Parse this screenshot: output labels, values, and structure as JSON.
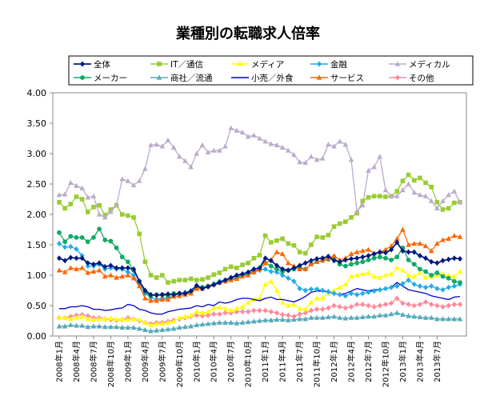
{
  "chart_data": {
    "type": "line",
    "title": "業種別の転職求人倍率",
    "xlabel": "",
    "ylabel": "",
    "ylim": [
      0,
      4
    ],
    "yticks": [
      "0.00",
      "0.50",
      "1.00",
      "1.50",
      "2.00",
      "2.50",
      "3.00",
      "3.50",
      "4.00"
    ],
    "grid": false,
    "legend_position": "top",
    "start": "2008-01",
    "x_tick_labels": [
      "2008年1月",
      "2008年4月",
      "2008年7月",
      "2008年10月",
      "2009年1月",
      "2009年4月",
      "2009年7月",
      "2009年10月",
      "2010年1月",
      "2010年4月",
      "2010年7月",
      "2010年10月",
      "2011年1月",
      "2011年4月",
      "2011年7月",
      "2011年10月",
      "2012年1月",
      "2012年4月",
      "2012年7月",
      "2012年10月",
      "2013年1月",
      "2013年4月",
      "2013年7月"
    ],
    "series": [
      {
        "name": "全体",
        "color": "#001a80",
        "marker": "diamond",
        "values": [
          1.28,
          1.24,
          1.29,
          1.28,
          1.28,
          1.2,
          1.18,
          1.2,
          1.14,
          1.16,
          1.12,
          1.12,
          1.12,
          1.1,
          0.9,
          0.75,
          0.68,
          0.67,
          0.68,
          0.69,
          0.68,
          0.7,
          0.7,
          0.74,
          0.83,
          0.78,
          0.81,
          0.84,
          0.88,
          0.92,
          0.96,
          1.0,
          1.02,
          1.05,
          1.1,
          1.12,
          1.28,
          1.24,
          1.16,
          1.1,
          1.08,
          1.12,
          1.16,
          1.2,
          1.24,
          1.27,
          1.28,
          1.31,
          1.24,
          1.22,
          1.25,
          1.27,
          1.28,
          1.3,
          1.32,
          1.35,
          1.38,
          1.37,
          1.42,
          1.54,
          1.4,
          1.38,
          1.38,
          1.32,
          1.28,
          1.22,
          1.2,
          1.24,
          1.26,
          1.28,
          1.27
        ]
      },
      {
        "name": "IT／通信",
        "color": "#99cc33",
        "marker": "square",
        "values": [
          2.2,
          2.1,
          2.17,
          2.29,
          2.25,
          2.04,
          2.12,
          2.15,
          1.99,
          2.08,
          2.15,
          2.0,
          1.98,
          1.95,
          1.68,
          1.22,
          1.0,
          0.96,
          1.0,
          0.88,
          0.9,
          0.92,
          0.92,
          0.94,
          0.92,
          0.93,
          0.96,
          1.01,
          1.04,
          1.1,
          1.14,
          1.12,
          1.17,
          1.2,
          1.28,
          1.33,
          1.65,
          1.54,
          1.57,
          1.6,
          1.52,
          1.49,
          1.38,
          1.36,
          1.5,
          1.63,
          1.62,
          1.66,
          1.8,
          1.85,
          1.88,
          1.95,
          2.02,
          2.22,
          2.28,
          2.3,
          2.3,
          2.29,
          2.3,
          2.38,
          2.55,
          2.65,
          2.56,
          2.6,
          2.52,
          2.45,
          2.2,
          2.08,
          2.1,
          2.19,
          2.2
        ]
      },
      {
        "name": "メディア",
        "color": "#ffff00",
        "marker": "triangle",
        "values": [
          0.3,
          0.3,
          0.28,
          0.3,
          0.32,
          0.28,
          0.27,
          0.28,
          0.28,
          0.29,
          0.28,
          0.27,
          0.27,
          0.28,
          0.27,
          0.22,
          0.18,
          0.2,
          0.2,
          0.22,
          0.24,
          0.3,
          0.32,
          0.34,
          0.4,
          0.38,
          0.4,
          0.46,
          0.47,
          0.45,
          0.42,
          0.45,
          0.48,
          0.55,
          0.6,
          0.62,
          0.85,
          0.9,
          0.75,
          0.55,
          0.5,
          0.52,
          0.45,
          0.44,
          0.55,
          0.62,
          0.62,
          0.7,
          0.75,
          0.8,
          0.85,
          0.98,
          1.0,
          1.02,
          1.04,
          0.98,
          0.96,
          1.0,
          1.02,
          1.12,
          1.08,
          1.0,
          0.98,
          1.04,
          0.96,
          0.98,
          1.0,
          1.02,
          1.0,
          0.98,
          1.06
        ]
      },
      {
        "name": "金融",
        "color": "#22aaee",
        "marker": "diamond",
        "values": [
          1.52,
          1.46,
          1.47,
          1.43,
          1.32,
          1.15,
          1.15,
          1.18,
          1.1,
          1.12,
          1.1,
          1.1,
          1.05,
          1.0,
          0.85,
          0.7,
          0.63,
          0.6,
          0.62,
          0.62,
          0.66,
          0.7,
          0.72,
          0.74,
          0.82,
          0.8,
          0.82,
          0.86,
          0.9,
          0.92,
          0.96,
          0.98,
          1.0,
          1.02,
          1.05,
          1.08,
          1.1,
          1.06,
          1.05,
          1.0,
          0.95,
          0.9,
          0.78,
          0.75,
          0.77,
          0.77,
          0.75,
          0.73,
          0.7,
          0.68,
          0.66,
          0.7,
          0.68,
          0.7,
          0.72,
          0.74,
          0.76,
          0.78,
          0.8,
          0.82,
          0.86,
          0.92,
          0.85,
          0.82,
          0.8,
          0.82,
          0.78,
          0.76,
          0.8,
          0.82,
          0.85
        ]
      },
      {
        "name": "メディカル",
        "color": "#bbaacc",
        "marker": "triangle",
        "values": [
          2.32,
          2.33,
          2.52,
          2.47,
          2.43,
          2.28,
          2.3,
          2.0,
          1.95,
          2.04,
          2.15,
          2.58,
          2.55,
          2.48,
          2.55,
          2.75,
          3.14,
          3.15,
          3.12,
          3.22,
          3.1,
          2.95,
          2.88,
          2.78,
          3.0,
          3.14,
          3.02,
          3.05,
          3.05,
          3.12,
          3.42,
          3.38,
          3.35,
          3.28,
          3.3,
          3.25,
          3.2,
          3.16,
          3.14,
          3.1,
          3.05,
          2.98,
          2.86,
          2.85,
          2.95,
          2.9,
          2.92,
          3.15,
          3.12,
          3.2,
          3.15,
          2.9,
          2.05,
          2.15,
          2.72,
          2.78,
          2.95,
          2.4,
          2.3,
          2.3,
          2.4,
          2.5,
          2.36,
          2.32,
          2.3,
          2.22,
          2.1,
          2.22,
          2.32,
          2.38,
          2.2
        ]
      },
      {
        "name": "メーカー",
        "color": "#11aa66",
        "marker": "circle",
        "values": [
          1.7,
          1.55,
          1.64,
          1.62,
          1.62,
          1.55,
          1.62,
          1.76,
          1.58,
          1.56,
          1.45,
          1.3,
          1.22,
          1.08,
          0.9,
          0.72,
          0.66,
          0.68,
          0.68,
          0.66,
          0.7,
          0.7,
          0.7,
          0.72,
          0.78,
          0.8,
          0.82,
          0.85,
          0.88,
          0.9,
          0.94,
          0.96,
          1.0,
          1.02,
          1.06,
          1.1,
          1.2,
          1.15,
          1.1,
          1.06,
          1.08,
          1.1,
          1.12,
          1.1,
          1.18,
          1.22,
          1.24,
          1.26,
          1.3,
          1.18,
          1.15,
          1.18,
          1.2,
          1.22,
          1.25,
          1.28,
          1.3,
          1.28,
          1.25,
          1.3,
          1.45,
          1.25,
          1.18,
          1.1,
          1.06,
          1.0,
          1.04,
          0.98,
          0.95,
          0.9,
          0.88
        ]
      },
      {
        "name": "商社／流通",
        "color": "#55aabb",
        "marker": "triangle",
        "values": [
          0.16,
          0.16,
          0.18,
          0.17,
          0.17,
          0.15,
          0.16,
          0.16,
          0.15,
          0.15,
          0.15,
          0.14,
          0.14,
          0.14,
          0.12,
          0.1,
          0.08,
          0.09,
          0.1,
          0.11,
          0.12,
          0.14,
          0.15,
          0.16,
          0.18,
          0.19,
          0.2,
          0.21,
          0.22,
          0.22,
          0.22,
          0.21,
          0.22,
          0.23,
          0.24,
          0.25,
          0.26,
          0.26,
          0.27,
          0.27,
          0.26,
          0.27,
          0.28,
          0.28,
          0.3,
          0.3,
          0.3,
          0.31,
          0.32,
          0.3,
          0.29,
          0.3,
          0.3,
          0.31,
          0.32,
          0.32,
          0.34,
          0.34,
          0.36,
          0.38,
          0.35,
          0.33,
          0.32,
          0.31,
          0.3,
          0.3,
          0.28,
          0.28,
          0.28,
          0.28,
          0.28
        ]
      },
      {
        "name": "小売／外食",
        "color": "#0000cc",
        "marker": "none",
        "values": [
          0.45,
          0.45,
          0.48,
          0.48,
          0.5,
          0.48,
          0.44,
          0.44,
          0.42,
          0.43,
          0.45,
          0.46,
          0.52,
          0.5,
          0.44,
          0.42,
          0.38,
          0.36,
          0.36,
          0.4,
          0.42,
          0.44,
          0.45,
          0.46,
          0.5,
          0.48,
          0.52,
          0.5,
          0.56,
          0.54,
          0.56,
          0.6,
          0.62,
          0.62,
          0.6,
          0.58,
          0.62,
          0.64,
          0.6,
          0.6,
          0.58,
          0.56,
          0.6,
          0.65,
          0.72,
          0.74,
          0.74,
          0.72,
          0.7,
          0.68,
          0.7,
          0.74,
          0.78,
          0.76,
          0.74,
          0.76,
          0.76,
          0.78,
          0.8,
          0.88,
          0.82,
          0.76,
          0.74,
          0.72,
          0.7,
          0.66,
          0.64,
          0.62,
          0.6,
          0.64,
          0.65
        ]
      },
      {
        "name": "サービス",
        "color": "#ff6600",
        "marker": "triangle",
        "values": [
          1.08,
          1.05,
          1.12,
          1.1,
          1.12,
          1.04,
          1.06,
          1.08,
          0.98,
          1.0,
          0.96,
          0.98,
          1.0,
          0.95,
          0.82,
          0.62,
          0.58,
          0.58,
          0.6,
          0.6,
          0.65,
          0.66,
          0.68,
          0.7,
          0.78,
          0.78,
          0.82,
          0.85,
          0.88,
          0.9,
          0.92,
          0.94,
          0.98,
          1.0,
          1.05,
          1.1,
          1.2,
          1.25,
          1.38,
          1.35,
          1.2,
          1.15,
          1.1,
          1.1,
          1.18,
          1.22,
          1.25,
          1.28,
          1.32,
          1.25,
          1.28,
          1.35,
          1.38,
          1.4,
          1.42,
          1.36,
          1.38,
          1.42,
          1.48,
          1.6,
          1.75,
          1.5,
          1.52,
          1.52,
          1.48,
          1.4,
          1.52,
          1.58,
          1.6,
          1.65,
          1.63
        ]
      },
      {
        "name": "その他",
        "color": "#ff8899",
        "marker": "diamond",
        "values": [
          0.3,
          0.3,
          0.32,
          0.34,
          0.35,
          0.33,
          0.3,
          0.3,
          0.28,
          0.27,
          0.26,
          0.27,
          0.3,
          0.28,
          0.25,
          0.22,
          0.2,
          0.22,
          0.22,
          0.24,
          0.26,
          0.28,
          0.3,
          0.32,
          0.34,
          0.33,
          0.34,
          0.36,
          0.36,
          0.38,
          0.38,
          0.4,
          0.4,
          0.4,
          0.42,
          0.42,
          0.42,
          0.4,
          0.38,
          0.35,
          0.34,
          0.32,
          0.36,
          0.38,
          0.42,
          0.44,
          0.44,
          0.46,
          0.5,
          0.48,
          0.46,
          0.48,
          0.52,
          0.52,
          0.5,
          0.48,
          0.5,
          0.52,
          0.54,
          0.62,
          0.54,
          0.52,
          0.5,
          0.52,
          0.56,
          0.52,
          0.5,
          0.48,
          0.5,
          0.52,
          0.52
        ]
      }
    ]
  }
}
